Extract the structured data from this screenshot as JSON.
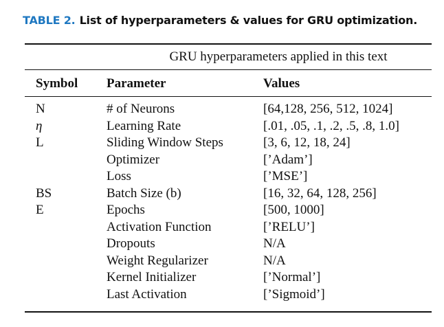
{
  "caption": {
    "label": "TABLE 2.",
    "text": "List of hyperparameters & values for GRU optimization."
  },
  "table": {
    "span_header": "GRU hyperparameters applied in this text",
    "columns": [
      "Symbol",
      "Parameter",
      "Values"
    ],
    "rows": [
      {
        "symbol": "N",
        "parameter": "# of Neurons",
        "values": "[64,128, 256, 512, 1024]"
      },
      {
        "symbol": "η",
        "parameter": "Learning Rate",
        "values": "[.01, .05, .1, .2, .5, .8, 1.0]"
      },
      {
        "symbol": "L",
        "parameter": "Sliding Window Steps",
        "values": "[3, 6, 12, 18, 24]"
      },
      {
        "symbol": "",
        "parameter": "Optimizer",
        "values": "[’Adam’]"
      },
      {
        "symbol": "",
        "parameter": "Loss",
        "values": "[’MSE’]"
      },
      {
        "symbol": "BS",
        "parameter": "Batch Size (b)",
        "values": "[16, 32, 64, 128, 256]"
      },
      {
        "symbol": "E",
        "parameter": "Epochs",
        "values": "[500, 1000]"
      },
      {
        "symbol": "",
        "parameter": "Activation Function",
        "values": "[’RELU’]"
      },
      {
        "symbol": "",
        "parameter": "Dropouts",
        "values": "N/A"
      },
      {
        "symbol": "",
        "parameter": "Weight Regularizer",
        "values": "N/A"
      },
      {
        "symbol": "",
        "parameter": "Kernel Initializer",
        "values": "[’Normal’]"
      },
      {
        "symbol": "",
        "parameter": "Last Activation",
        "values": "[’Sigmoid’]"
      }
    ]
  }
}
